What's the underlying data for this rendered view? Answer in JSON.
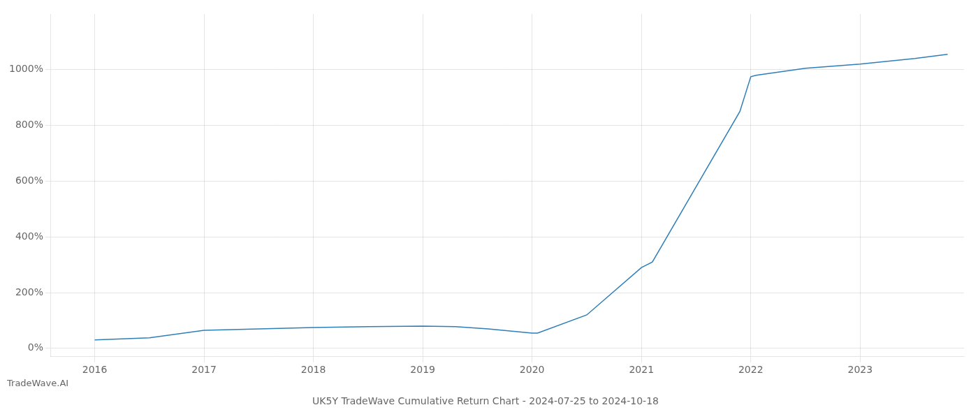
{
  "chart_data": {
    "type": "line",
    "title": "UK5Y TradeWave Cumulative Return Chart - 2024-07-25 to 2024-10-18",
    "annotations": [
      "TradeWave.AI"
    ],
    "x": [
      2016.0,
      2016.5,
      2017.0,
      2017.5,
      2018.0,
      2018.5,
      2019.0,
      2019.3,
      2019.6,
      2020.0,
      2020.05,
      2020.5,
      2021.0,
      2021.1,
      2021.5,
      2021.9,
      2022.0,
      2022.05,
      2022.5,
      2023.0,
      2023.5,
      2023.8
    ],
    "values": [
      30,
      38,
      65,
      70,
      75,
      78,
      80,
      78,
      70,
      55,
      55,
      120,
      290,
      310,
      580,
      850,
      975,
      980,
      1005,
      1020,
      1040,
      1055
    ],
    "color": "#2e7eb8",
    "xlim": [
      2015.6,
      2023.95
    ],
    "ylim": [
      -30,
      1200
    ],
    "xticks": [
      2016,
      2017,
      2018,
      2019,
      2020,
      2021,
      2022,
      2023
    ],
    "yticks": [
      {
        "value": 0,
        "label": "0%"
      },
      {
        "value": 200,
        "label": "200%"
      },
      {
        "value": 400,
        "label": "400%"
      },
      {
        "value": 600,
        "label": "600%"
      },
      {
        "value": 800,
        "label": "800%"
      },
      {
        "value": 1000,
        "label": "1000%"
      }
    ],
    "grid": true
  }
}
